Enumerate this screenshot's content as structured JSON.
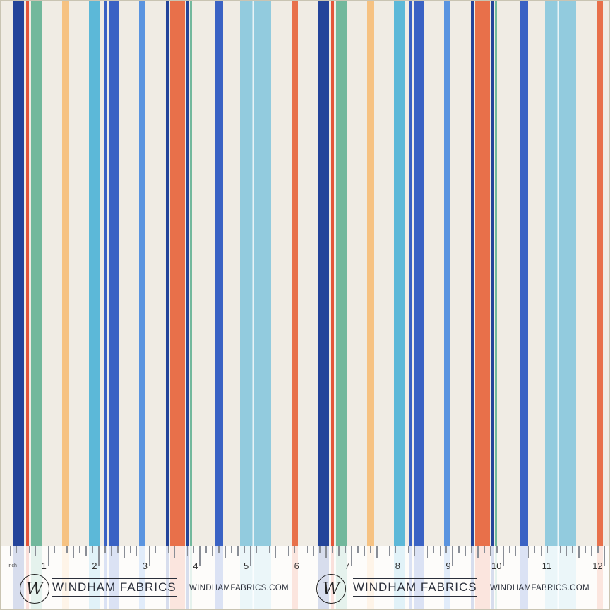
{
  "palette": {
    "navy": "#24449a",
    "blue": "#3a62c4",
    "cornflower": "#5a94e0",
    "sky": "#5cb8d8",
    "pale_sky": "#92cbde",
    "green": "#72b89c",
    "orange": "#e8704a",
    "red": "#e4553a",
    "peach": "#f6c282",
    "background": "#f0ece4",
    "frame": "#c9c4b2"
  },
  "ruler": {
    "unit_label": "inch",
    "numbers": [
      "1",
      "2",
      "3",
      "4",
      "5",
      "6",
      "7",
      "8",
      "9",
      "10",
      "11",
      "12"
    ]
  },
  "branding": [
    {
      "logo": "W",
      "name": "WINDHAM FABRICS",
      "url": "WINDHAMFABRICS.COM"
    },
    {
      "logo": "W",
      "name": "WINDHAM FABRICS",
      "url": "WINDHAMFABRICS.COM"
    }
  ]
}
